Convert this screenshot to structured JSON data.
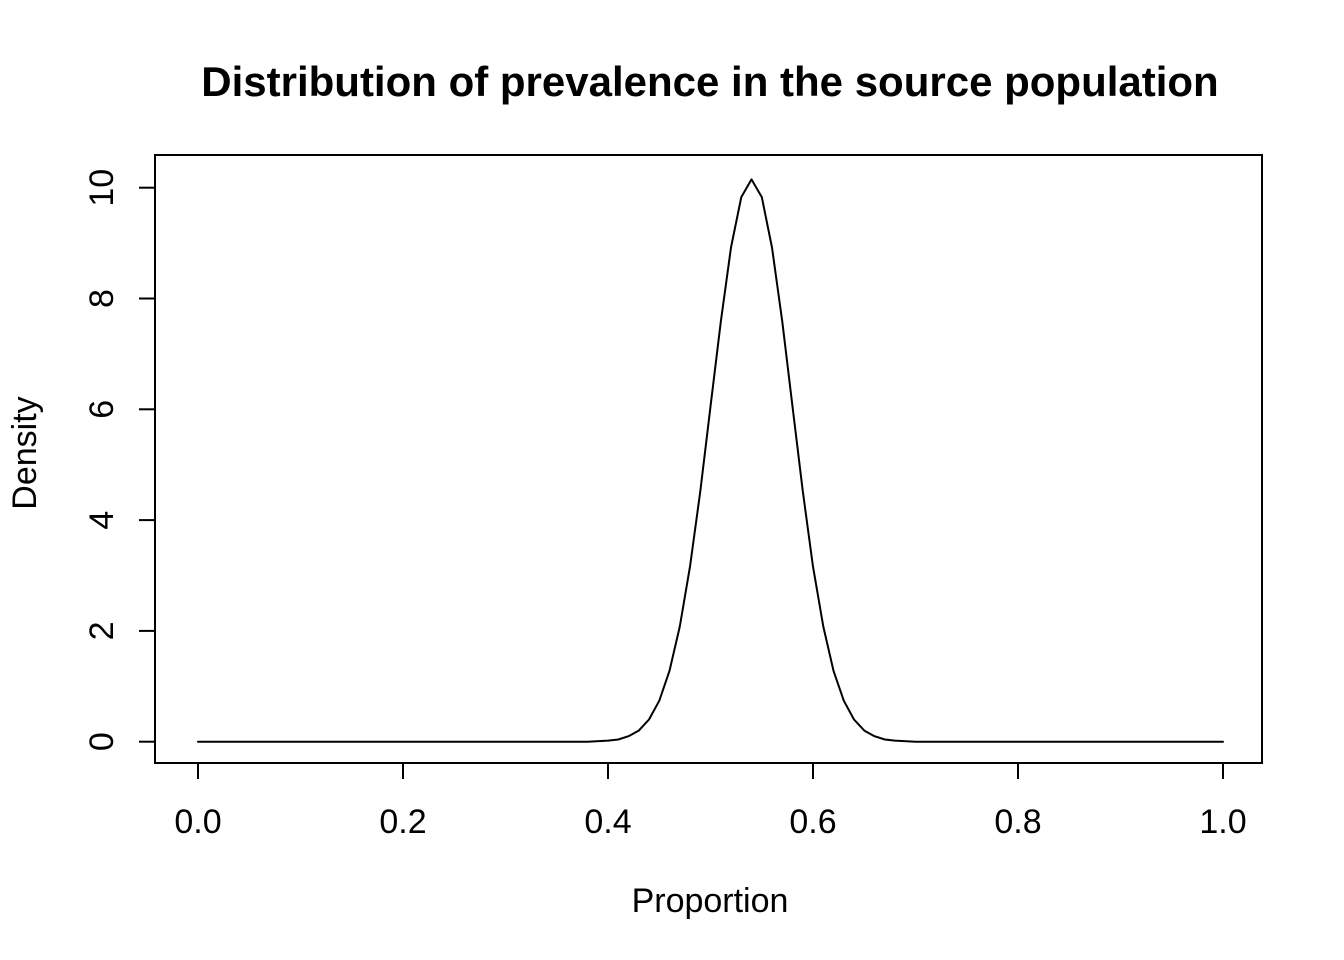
{
  "figure": {
    "background_color": "#ffffff",
    "foreground_color": "#000000"
  },
  "chart_data": {
    "type": "line",
    "title": "Distribution of prevalence in the source population",
    "xlabel": "Proportion",
    "ylabel": "Density",
    "grid": false,
    "legend": null,
    "line_color": "#000000",
    "box_color": "#000000",
    "x_ticks": {
      "values": [
        0,
        0.2,
        0.4,
        0.6,
        0.8,
        1.0
      ],
      "labels": [
        "0.0",
        "0.2",
        "0.4",
        "0.6",
        "0.8",
        "1.0"
      ]
    },
    "y_ticks": {
      "values": [
        0,
        2,
        4,
        6,
        8,
        10
      ],
      "labels": [
        "0",
        "2",
        "4",
        "6",
        "8",
        "10"
      ]
    },
    "xlim": [
      -0.042,
      1.039
    ],
    "ylim": [
      -0.39,
      10.59
    ],
    "peak": {
      "x": 0.54,
      "density": 10.15
    },
    "series": [
      {
        "name": "prevalence-density-curve",
        "x": [
          0.0,
          0.05,
          0.1,
          0.15,
          0.2,
          0.25,
          0.3,
          0.35,
          0.38,
          0.4,
          0.41,
          0.42,
          0.43,
          0.44,
          0.45,
          0.46,
          0.47,
          0.48,
          0.49,
          0.5,
          0.51,
          0.52,
          0.53,
          0.54,
          0.55,
          0.56,
          0.57,
          0.58,
          0.59,
          0.6,
          0.61,
          0.62,
          0.63,
          0.64,
          0.65,
          0.66,
          0.67,
          0.68,
          0.7,
          0.75,
          0.8,
          0.85,
          0.9,
          0.95,
          1.0
        ],
        "y": [
          0,
          0,
          0,
          0,
          0,
          0,
          0,
          0,
          0,
          0.02,
          0.04,
          0.1,
          0.2,
          0.4,
          0.74,
          1.28,
          2.08,
          3.16,
          4.52,
          6.05,
          7.58,
          8.92,
          9.83,
          10.15,
          9.83,
          8.92,
          7.58,
          6.05,
          4.52,
          3.16,
          2.08,
          1.28,
          0.74,
          0.4,
          0.2,
          0.1,
          0.04,
          0.02,
          0,
          0,
          0,
          0,
          0,
          0,
          0
        ]
      }
    ]
  }
}
